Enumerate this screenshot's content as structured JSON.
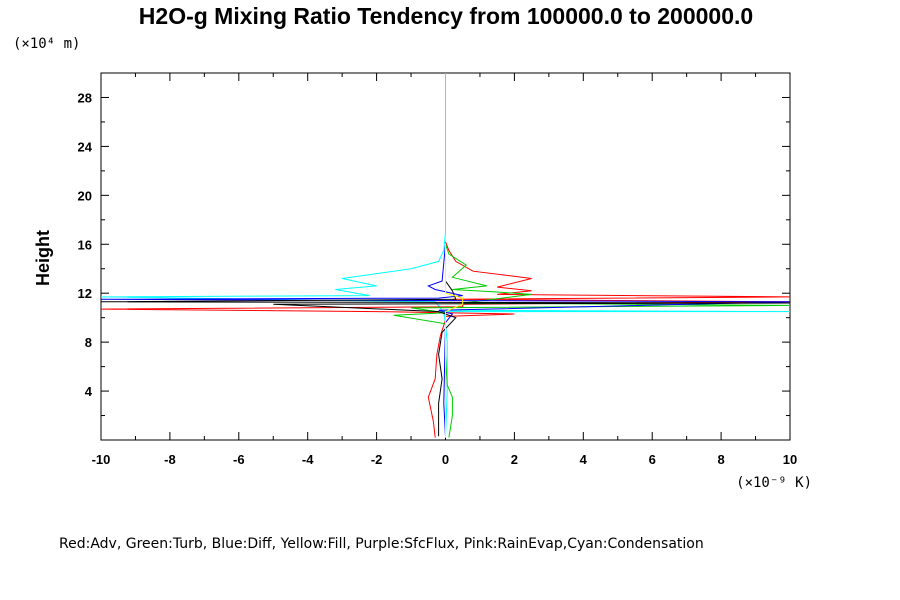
{
  "chart_data": {
    "type": "line",
    "title": "H2O-g Mixing Ratio Tendency from 100000.0 to 200000.0",
    "ylabel": "Height",
    "y_unit": "(×10⁴ m)",
    "x_unit": "(×10⁻⁹ K)",
    "xlim": [
      -10,
      10
    ],
    "ylim": [
      0,
      30
    ],
    "x_ticks": [
      -10,
      -8,
      -6,
      -4,
      -2,
      0,
      2,
      4,
      6,
      8,
      10
    ],
    "y_ticks": [
      4,
      8,
      12,
      16,
      20,
      24,
      28
    ],
    "legend_text": "Red:Adv, Green:Turb, Blue:Diff, Yellow:Fill, Purple:SfcFlux, Pink:RainEvap,Cyan:Condensation",
    "series": [
      {
        "color": "#00ffff",
        "points": [
          [
            0.0,
            0.2
          ],
          [
            0.05,
            4
          ],
          [
            0.05,
            8
          ],
          [
            0.0,
            9.5
          ],
          [
            -0.05,
            10.5
          ],
          [
            10,
            10.5
          ],
          [
            -0.1,
            10.6
          ],
          [
            -0.3,
            11.3
          ],
          [
            -10,
            11.7
          ],
          [
            -2.2,
            11.8
          ],
          [
            -3.2,
            12.3
          ],
          [
            -2.0,
            12.6
          ],
          [
            -3.0,
            13.2
          ],
          [
            -1.0,
            14.0
          ],
          [
            -0.2,
            14.6
          ],
          [
            -0.05,
            15.5
          ],
          [
            0.0,
            17
          ],
          [
            0.0,
            25
          ],
          [
            0.0,
            30
          ]
        ]
      },
      {
        "color": "#ff0000",
        "points": [
          [
            -0.3,
            0.2
          ],
          [
            -0.35,
            1.5
          ],
          [
            -0.5,
            3.5
          ],
          [
            -0.3,
            5
          ],
          [
            -0.25,
            7
          ],
          [
            -0.15,
            8.5
          ],
          [
            0.0,
            9.8
          ],
          [
            0.0,
            10.1
          ],
          [
            2.0,
            10.3
          ],
          [
            -2.0,
            10.5
          ],
          [
            -10,
            10.7
          ],
          [
            0.5,
            10.9
          ],
          [
            0.5,
            11.1
          ],
          [
            10,
            11.3
          ],
          [
            0.2,
            11.5
          ],
          [
            10,
            11.7
          ],
          [
            1.5,
            11.9
          ],
          [
            2.5,
            12.2
          ],
          [
            1.5,
            12.5
          ],
          [
            2.5,
            13.2
          ],
          [
            0.8,
            13.8
          ],
          [
            0.3,
            14.6
          ],
          [
            0.1,
            15.5
          ],
          [
            0.0,
            16.2
          ]
        ]
      },
      {
        "color": "#00cc00",
        "points": [
          [
            0.1,
            0.2
          ],
          [
            0.2,
            2
          ],
          [
            0.2,
            3.5
          ],
          [
            0.05,
            4.5
          ],
          [
            0.0,
            7
          ],
          [
            0.0,
            9.5
          ],
          [
            -1.5,
            10.2
          ],
          [
            0.0,
            10.4
          ],
          [
            -1.0,
            10.8
          ],
          [
            10,
            11.0
          ],
          [
            0.5,
            11.2
          ],
          [
            2.5,
            11.9
          ],
          [
            1.5,
            12.1
          ],
          [
            0.2,
            12.3
          ],
          [
            1.2,
            12.6
          ],
          [
            0.2,
            13.3
          ],
          [
            0.6,
            14.3
          ],
          [
            0.1,
            15.2
          ],
          [
            0.0,
            16.0
          ]
        ]
      },
      {
        "color": "#0000ff",
        "points": [
          [
            0.0,
            0.3
          ],
          [
            -0.05,
            3
          ],
          [
            0.0,
            9.6
          ],
          [
            0.2,
            10.3
          ],
          [
            -0.2,
            10.6
          ],
          [
            10,
            11.3
          ],
          [
            -10,
            11.5
          ],
          [
            -0.2,
            11.6
          ],
          [
            0.5,
            11.8
          ],
          [
            -0.3,
            12.3
          ],
          [
            -0.5,
            12.6
          ],
          [
            -0.1,
            13.0
          ],
          [
            0.0,
            16.0
          ]
        ]
      },
      {
        "color": "#000000",
        "points": [
          [
            -0.2,
            0.3
          ],
          [
            -0.2,
            3
          ],
          [
            -0.1,
            5
          ],
          [
            -0.2,
            7
          ],
          [
            -0.1,
            8.8
          ],
          [
            0.3,
            10.0
          ],
          [
            -0.2,
            10.5
          ],
          [
            -5,
            11.1
          ],
          [
            10,
            11.2
          ],
          [
            -10,
            11.3
          ],
          [
            0.3,
            11.5
          ],
          [
            0.2,
            12.2
          ],
          [
            0.0,
            13
          ]
        ]
      },
      {
        "color": "#ffff00",
        "points": [
          [
            0.0,
            0.2
          ],
          [
            0.0,
            10.5
          ],
          [
            0.5,
            11.1
          ],
          [
            0.5,
            11.6
          ],
          [
            0.0,
            12.0
          ],
          [
            0.0,
            16.0
          ]
        ]
      }
    ]
  }
}
